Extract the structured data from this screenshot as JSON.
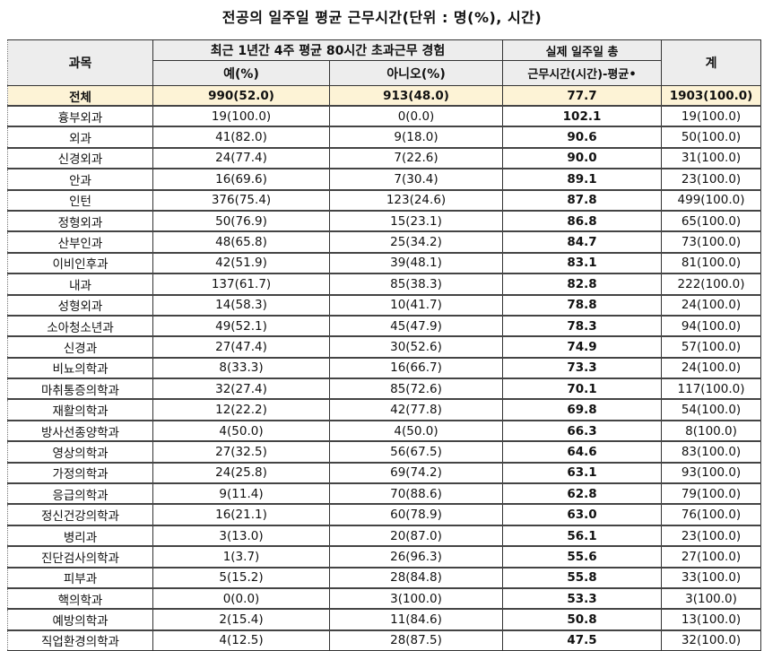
{
  "title": "전공의 일주일 평균 근무시간(단위 : 명(%), 시간)",
  "headers": {
    "department": "과목",
    "overtime_group": "최근 1년간 4주 평균 80시간 초과근무 경험",
    "yes": "예(%)",
    "no": "아니오(%)",
    "hours_line1": "실제 일주일 총",
    "hours_line2": "근무시간(시간)-평균•",
    "total": "계"
  },
  "total_row": {
    "department": "전체",
    "yes": "990(52.0)",
    "no": "913(48.0)",
    "hours": "77.7",
    "total": "1903(100.0)"
  },
  "rows": [
    {
      "department": "흉부외과",
      "yes": "19(100.0)",
      "no": "0(0.0)",
      "hours": "102.1",
      "total": "19(100.0)"
    },
    {
      "department": "외과",
      "yes": "41(82.0)",
      "no": "9(18.0)",
      "hours": "90.6",
      "total": "50(100.0)"
    },
    {
      "department": "신경외과",
      "yes": "24(77.4)",
      "no": "7(22.6)",
      "hours": "90.0",
      "total": "31(100.0)"
    },
    {
      "department": "안과",
      "yes": "16(69.6)",
      "no": "7(30.4)",
      "hours": "89.1",
      "total": "23(100.0)"
    },
    {
      "department": "인턴",
      "yes": "376(75.4)",
      "no": "123(24.6)",
      "hours": "87.8",
      "total": "499(100.0)"
    },
    {
      "department": "정형외과",
      "yes": "50(76.9)",
      "no": "15(23.1)",
      "hours": "86.8",
      "total": "65(100.0)"
    },
    {
      "department": "산부인과",
      "yes": "48(65.8)",
      "no": "25(34.2)",
      "hours": "84.7",
      "total": "73(100.0)"
    },
    {
      "department": "이비인후과",
      "yes": "42(51.9)",
      "no": "39(48.1)",
      "hours": "83.1",
      "total": "81(100.0)"
    },
    {
      "department": "내과",
      "yes": "137(61.7)",
      "no": "85(38.3)",
      "hours": "82.8",
      "total": "222(100.0)"
    },
    {
      "department": "성형외과",
      "yes": "14(58.3)",
      "no": "10(41.7)",
      "hours": "78.8",
      "total": "24(100.0)"
    },
    {
      "department": "소아청소년과",
      "yes": "49(52.1)",
      "no": "45(47.9)",
      "hours": "78.3",
      "total": "94(100.0)"
    },
    {
      "department": "신경과",
      "yes": "27(47.4)",
      "no": "30(52.6)",
      "hours": "74.9",
      "total": "57(100.0)"
    },
    {
      "department": "비뇨의학과",
      "yes": "8(33.3)",
      "no": "16(66.7)",
      "hours": "73.3",
      "total": "24(100.0)"
    },
    {
      "department": "마취통증의학과",
      "yes": "32(27.4)",
      "no": "85(72.6)",
      "hours": "70.1",
      "total": "117(100.0)"
    },
    {
      "department": "재활의학과",
      "yes": "12(22.2)",
      "no": "42(77.8)",
      "hours": "69.8",
      "total": "54(100.0)"
    },
    {
      "department": "방사선종양학과",
      "yes": "4(50.0)",
      "no": "4(50.0)",
      "hours": "66.3",
      "total": "8(100.0)"
    },
    {
      "department": "영상의학과",
      "yes": "27(32.5)",
      "no": "56(67.5)",
      "hours": "64.6",
      "total": "83(100.0)"
    },
    {
      "department": "가정의학과",
      "yes": "24(25.8)",
      "no": "69(74.2)",
      "hours": "63.1",
      "total": "93(100.0)"
    },
    {
      "department": "응급의학과",
      "yes": "9(11.4)",
      "no": "70(88.6)",
      "hours": "62.8",
      "total": "79(100.0)"
    },
    {
      "department": "정신건강의학과",
      "yes": "16(21.1)",
      "no": "60(78.9)",
      "hours": "63.0",
      "total": "76(100.0)"
    },
    {
      "department": "병리과",
      "yes": "3(13.0)",
      "no": "20(87.0)",
      "hours": "56.1",
      "total": "23(100.0)"
    },
    {
      "department": "진단검사의학과",
      "yes": "1(3.7)",
      "no": "26(96.3)",
      "hours": "55.6",
      "total": "27(100.0)"
    },
    {
      "department": "피부과",
      "yes": "5(15.2)",
      "no": "28(84.8)",
      "hours": "55.8",
      "total": "33(100.0)"
    },
    {
      "department": "핵의학과",
      "yes": "0(0.0)",
      "no": "3(100.0)",
      "hours": "53.3",
      "total": "3(100.0)"
    },
    {
      "department": "예방의학과",
      "yes": "2(15.4)",
      "no": "11(84.6)",
      "hours": "50.8",
      "total": "13(100.0)"
    },
    {
      "department": "직업환경의학과",
      "yes": "4(12.5)",
      "no": "28(87.5)",
      "hours": "47.5",
      "total": "32(100.0)"
    }
  ],
  "colors": {
    "header_bg": "#ededed",
    "total_row_bg": "#fdf3d6"
  }
}
